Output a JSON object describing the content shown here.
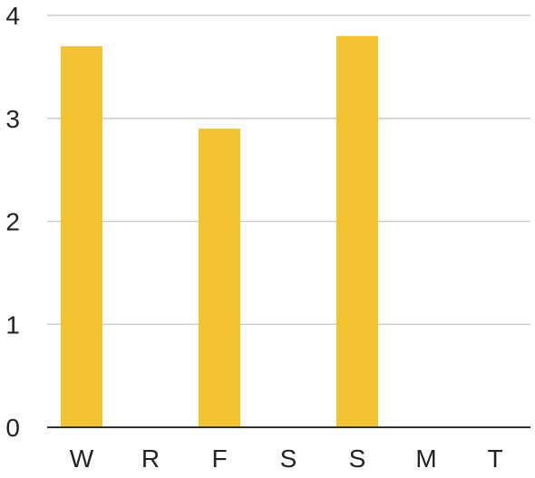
{
  "chart_data": {
    "type": "bar",
    "title": "",
    "xlabel": "",
    "ylabel": "",
    "categories": [
      "W",
      "R",
      "F",
      "S",
      "S",
      "M",
      "T"
    ],
    "values": [
      3.7,
      0,
      2.9,
      0,
      3.8,
      0,
      0
    ],
    "ylim": [
      0,
      4
    ],
    "yticks": [
      "0",
      "1",
      "2",
      "3",
      "4"
    ],
    "grid": true,
    "legend": "none",
    "colors": {
      "bar": "#F1C232",
      "grid": "#CCCCCC",
      "axis": "#333333",
      "text": "#222222"
    }
  }
}
